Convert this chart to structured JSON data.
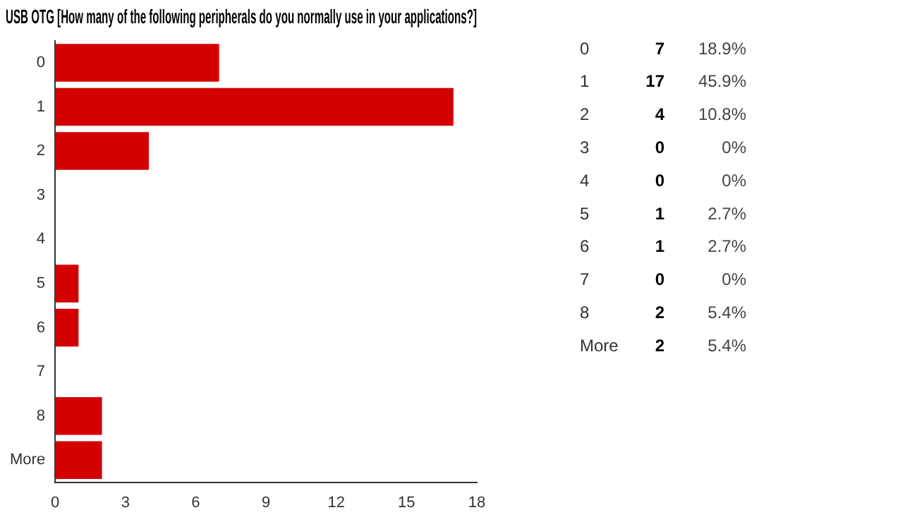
{
  "chart_data": {
    "type": "bar",
    "orientation": "horizontal",
    "title": "USB OTG [How many of the following peripherals do you normally use in your applications?]",
    "categories": [
      "0",
      "1",
      "2",
      "3",
      "4",
      "5",
      "6",
      "7",
      "8",
      "More"
    ],
    "values": [
      7,
      17,
      4,
      0,
      0,
      1,
      1,
      0,
      2,
      2
    ],
    "annotations": [
      "7",
      "18.9%",
      "17",
      "45.9%",
      "4",
      "10.8%",
      "0",
      "0%",
      "0",
      "0%",
      "1",
      "2.7%",
      "1",
      "2.7%",
      "0",
      "0%",
      "2",
      "5.4%",
      "2",
      "5.4%"
    ],
    "color": "#d40000",
    "xlim": [
      0,
      18
    ],
    "xticks": [
      0,
      3,
      6,
      9,
      12,
      15,
      18
    ],
    "grid": false,
    "legend": false
  }
}
